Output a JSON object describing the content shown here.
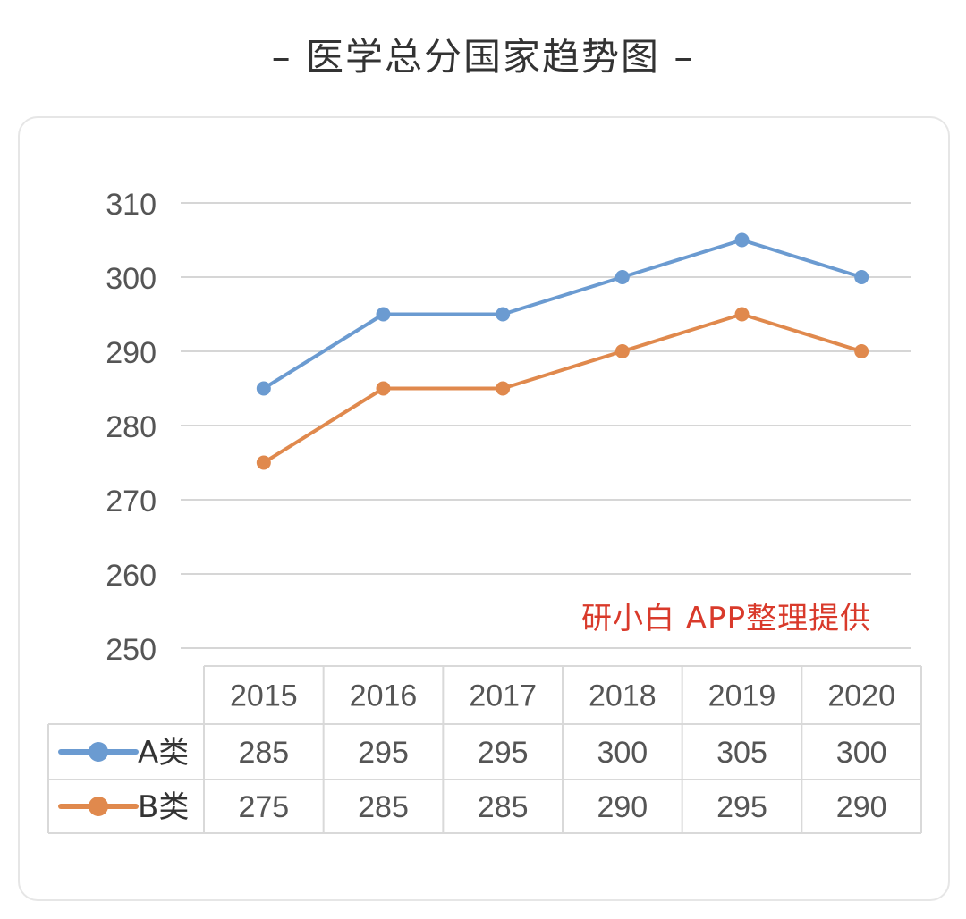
{
  "title_prefix": "–",
  "title": "医学总分国家趋势图",
  "title_suffix": "–",
  "watermark": "研小白 APP整理提供",
  "colors": {
    "seriesA": "#6b9bd1",
    "seriesB": "#e0894d",
    "grid": "#d6d6d6",
    "table": "#d9d9d9",
    "text": "#555555"
  },
  "chart_data": {
    "type": "line",
    "title": "医学总分国家趋势图",
    "categories": [
      "2015",
      "2016",
      "2017",
      "2018",
      "2019",
      "2020"
    ],
    "series": [
      {
        "name": "A类",
        "values": [
          285,
          295,
          295,
          300,
          305,
          300
        ]
      },
      {
        "name": "B类",
        "values": [
          275,
          285,
          285,
          290,
          295,
          290
        ]
      }
    ],
    "ylim": [
      250,
      310
    ],
    "yticks": [
      "250",
      "260",
      "270",
      "280",
      "290",
      "300",
      "310"
    ],
    "grid": true,
    "legend": "data-table-bottom"
  }
}
